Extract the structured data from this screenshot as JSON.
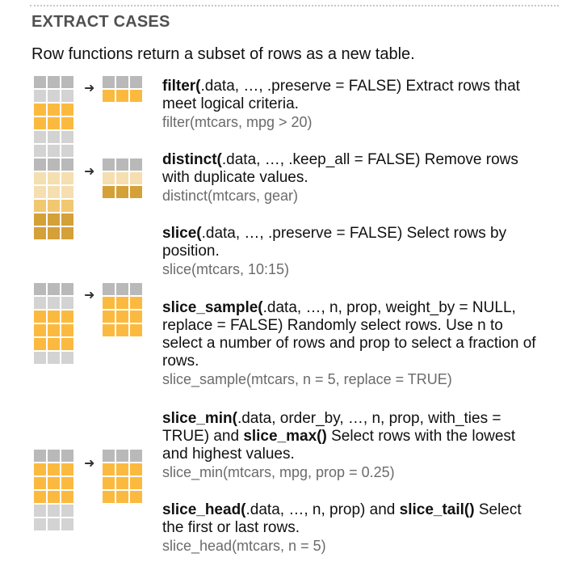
{
  "heading": "EXTRACT CASES",
  "intro": "Row functions return a subset of rows as a new table.",
  "entries": {
    "filter": {
      "fn": "filter(",
      "rest": ".data, …, .preserve = FALSE) Extract rows that meet logical criteria.",
      "example": "filter(mtcars, mpg > 20)"
    },
    "distinct": {
      "fn": "distinct(",
      "rest": ".data, …, .keep_all = FALSE) Remove rows with duplicate values.",
      "example": "distinct(mtcars, gear)"
    },
    "slice": {
      "fn": "slice(",
      "rest": ".data, …, .preserve = FALSE) Select rows by position.",
      "example": "slice(mtcars, 10:15)"
    },
    "slice_sample": {
      "fn": "slice_sample(",
      "rest": ".data, …, n, prop, weight_by = NULL, replace = FALSE) Randomly select rows. Use n to select a number of rows and prop to select a fraction of rows.",
      "example": "slice_sample(mtcars, n = 5, replace = TRUE)"
    },
    "slice_min": {
      "fn": "slice_min(",
      "rest1": ".data, order_by, …, n, prop, with_ties = TRUE) and ",
      "fn2": "slice_max()",
      "rest2": " Select rows with the lowest and highest values.",
      "example": "slice_min(mtcars, mpg, prop = 0.25)"
    },
    "slice_head": {
      "fn": "slice_head(",
      "rest1": ".data, …, n, prop) and ",
      "fn2": "slice_tail()",
      "rest2": " Select the first or last rows.",
      "example": "slice_head(mtcars, n = 5)"
    }
  },
  "arrow_glyph": "➜",
  "colors": {
    "header_gray": "#b9b9b9",
    "row_gray": "#d3d3d3",
    "highlight_yellow": "#fbba3f",
    "light_tan": "#f5dfb0",
    "mid_tan": "#f1c870",
    "dark_tan": "#d4a038"
  }
}
